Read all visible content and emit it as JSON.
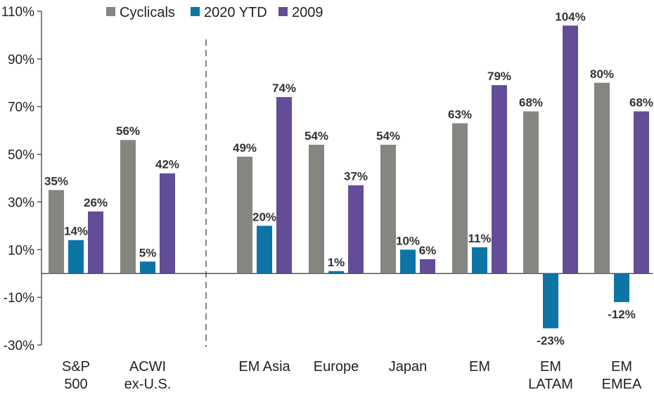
{
  "chart_data": {
    "type": "bar",
    "title": "",
    "xlabel": "",
    "ylabel": "",
    "ylim": [
      -30,
      110
    ],
    "yticks": [
      -30,
      -10,
      10,
      30,
      50,
      70,
      90,
      110
    ],
    "ytick_labels": [
      "-30%",
      "-10%",
      "10%",
      "30%",
      "50%",
      "70%",
      "90%",
      "110%"
    ],
    "legend_position": "top",
    "grid": false,
    "divider_after_category": 1,
    "categories": [
      [
        "S&P",
        "500"
      ],
      [
        "ACWI",
        "ex-U.S."
      ],
      [
        "EM Asia"
      ],
      [
        "Europe"
      ],
      [
        "Japan"
      ],
      [
        "EM"
      ],
      [
        "EM",
        "LATAM"
      ],
      [
        "EM",
        "EMEA"
      ]
    ],
    "series": [
      {
        "name": "Cyclicals",
        "color": "#858680",
        "values": [
          35,
          56,
          49,
          54,
          54,
          63,
          68,
          80
        ],
        "labels": [
          "35%",
          "56%",
          "49%",
          "54%",
          "54%",
          "63%",
          "68%",
          "80%"
        ]
      },
      {
        "name": "2020 YTD",
        "color": "#0d74a6",
        "values": [
          14,
          5,
          20,
          1,
          10,
          11,
          -23,
          -12
        ],
        "labels": [
          "14%",
          "5%",
          "20%",
          "1%",
          "10%",
          "11%",
          "-23%",
          "-12%"
        ]
      },
      {
        "name": "2009",
        "color": "#624d96",
        "values": [
          26,
          42,
          74,
          37,
          6,
          79,
          104,
          68
        ],
        "labels": [
          "26%",
          "42%",
          "74%",
          "37%",
          "6%",
          "79%",
          "104%",
          "68%"
        ]
      }
    ]
  }
}
